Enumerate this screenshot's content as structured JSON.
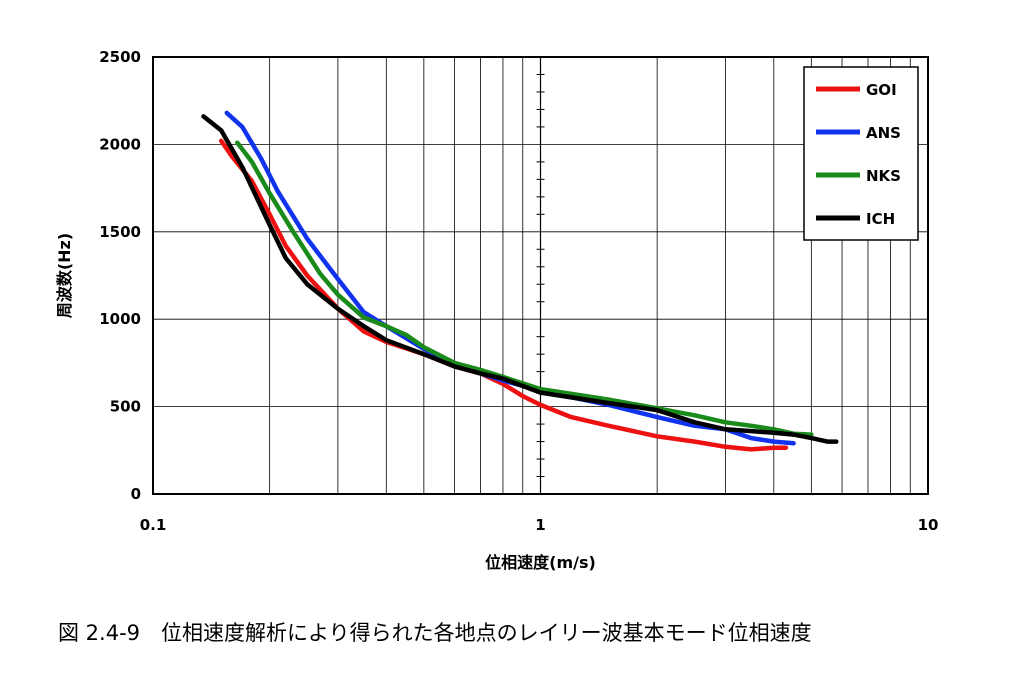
{
  "chart_data": {
    "type": "line",
    "title": "",
    "caption": "図 2.4-9　位相速度解析により得られた各地点のレイリー波基本モード位相速度",
    "xlabel": "位相速度(m/s)",
    "ylabel": "周波数(Hz)",
    "x_scale": "log",
    "xlim": [
      0.1,
      10
    ],
    "ylim": [
      0,
      2500
    ],
    "x_ticks": [
      "0.1",
      "1",
      "10"
    ],
    "y_ticks": [
      "0",
      "500",
      "1000",
      "1500",
      "2000",
      "2500"
    ],
    "grid": true,
    "legend_position": "top-right",
    "series": [
      {
        "name": "GOI",
        "color": "#ee1111",
        "points": [
          [
            0.15,
            2020
          ],
          [
            0.16,
            1930
          ],
          [
            0.18,
            1790
          ],
          [
            0.2,
            1600
          ],
          [
            0.22,
            1420
          ],
          [
            0.25,
            1250
          ],
          [
            0.3,
            1060
          ],
          [
            0.35,
            930
          ],
          [
            0.4,
            870
          ],
          [
            0.5,
            800
          ],
          [
            0.6,
            730
          ],
          [
            0.7,
            690
          ],
          [
            0.8,
            630
          ],
          [
            0.9,
            560
          ],
          [
            1.0,
            510
          ],
          [
            1.2,
            440
          ],
          [
            1.5,
            390
          ],
          [
            2.0,
            330
          ],
          [
            2.5,
            300
          ],
          [
            3.0,
            270
          ],
          [
            3.5,
            255
          ],
          [
            4.0,
            265
          ],
          [
            4.3,
            265
          ]
        ]
      },
      {
        "name": "ANS",
        "color": "#1133ee",
        "points": [
          [
            0.155,
            2180
          ],
          [
            0.17,
            2100
          ],
          [
            0.19,
            1920
          ],
          [
            0.21,
            1730
          ],
          [
            0.25,
            1460
          ],
          [
            0.3,
            1230
          ],
          [
            0.35,
            1040
          ],
          [
            0.4,
            960
          ],
          [
            0.5,
            830
          ],
          [
            0.6,
            740
          ],
          [
            0.7,
            690
          ],
          [
            0.8,
            650
          ],
          [
            1.0,
            590
          ],
          [
            1.5,
            510
          ],
          [
            2.0,
            440
          ],
          [
            2.5,
            390
          ],
          [
            3.0,
            370
          ],
          [
            3.5,
            320
          ],
          [
            4.0,
            300
          ],
          [
            4.5,
            290
          ]
        ]
      },
      {
        "name": "NKS",
        "color": "#1a8a1a",
        "points": [
          [
            0.165,
            2010
          ],
          [
            0.18,
            1900
          ],
          [
            0.2,
            1720
          ],
          [
            0.23,
            1500
          ],
          [
            0.27,
            1260
          ],
          [
            0.3,
            1140
          ],
          [
            0.35,
            1010
          ],
          [
            0.4,
            960
          ],
          [
            0.45,
            910
          ],
          [
            0.5,
            840
          ],
          [
            0.6,
            750
          ],
          [
            0.7,
            710
          ],
          [
            0.8,
            670
          ],
          [
            1.0,
            600
          ],
          [
            1.5,
            540
          ],
          [
            2.0,
            490
          ],
          [
            2.5,
            450
          ],
          [
            3.0,
            410
          ],
          [
            3.5,
            390
          ],
          [
            4.0,
            370
          ],
          [
            4.5,
            345
          ],
          [
            5.0,
            340
          ]
        ]
      },
      {
        "name": "ICH",
        "color": "#000000",
        "points": [
          [
            0.135,
            2160
          ],
          [
            0.15,
            2080
          ],
          [
            0.17,
            1870
          ],
          [
            0.2,
            1540
          ],
          [
            0.22,
            1350
          ],
          [
            0.25,
            1200
          ],
          [
            0.3,
            1060
          ],
          [
            0.35,
            960
          ],
          [
            0.4,
            880
          ],
          [
            0.5,
            800
          ],
          [
            0.6,
            730
          ],
          [
            0.7,
            690
          ],
          [
            0.8,
            660
          ],
          [
            1.0,
            580
          ],
          [
            1.5,
            520
          ],
          [
            2.0,
            480
          ],
          [
            2.5,
            410
          ],
          [
            3.0,
            370
          ],
          [
            3.5,
            360
          ],
          [
            4.0,
            350
          ],
          [
            4.5,
            340
          ],
          [
            5.0,
            320
          ],
          [
            5.5,
            300
          ],
          [
            5.8,
            300
          ]
        ]
      }
    ]
  }
}
